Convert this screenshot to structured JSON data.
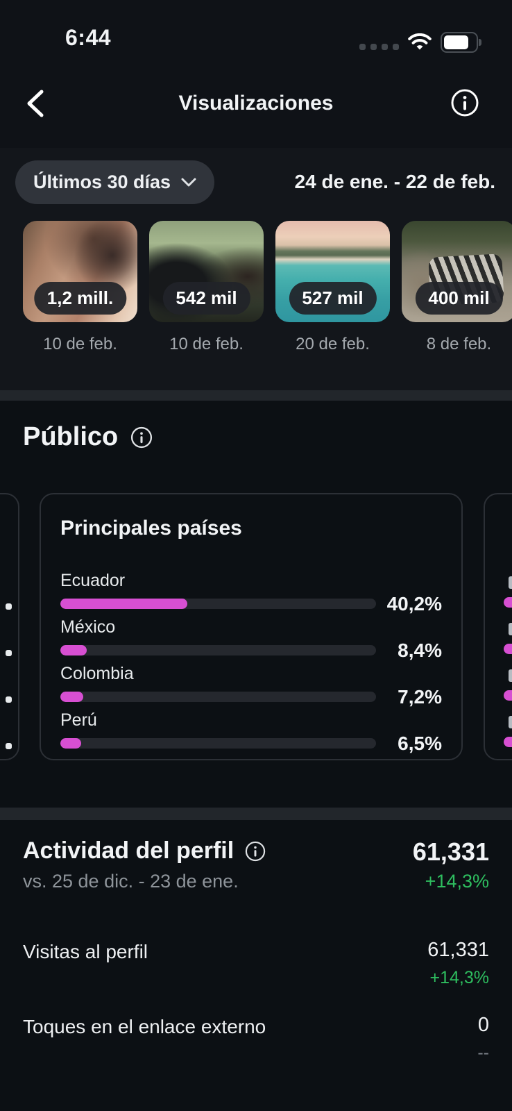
{
  "status_bar": {
    "time": "6:44"
  },
  "header": {
    "title": "Visualizaciones"
  },
  "filter": {
    "range_label": "Últimos 30 días",
    "date_range": "24 de ene. - 22 de feb."
  },
  "media_carousel": {
    "items": [
      {
        "views": "1,2 mill.",
        "date": "10 de feb.",
        "alt": "closeup-portrait-makeup"
      },
      {
        "views": "542 mil",
        "date": "10 de feb.",
        "alt": "two-people-indoors-plants"
      },
      {
        "views": "527 mil",
        "date": "20 de feb.",
        "alt": "beach-resort-turquoise-water"
      },
      {
        "views": "400 mil",
        "date": "8 de feb.",
        "alt": "two-people-outdoor-zebra-print"
      }
    ]
  },
  "audience": {
    "section_title": "Público"
  },
  "chart_data": {
    "type": "bar",
    "orientation": "horizontal",
    "title": "Principales países",
    "categories": [
      "Ecuador",
      "México",
      "Colombia",
      "Perú"
    ],
    "values": [
      40.2,
      8.4,
      7.2,
      6.5
    ],
    "value_labels": [
      "40,2%",
      "8,4%",
      "7,2%",
      "6,5%"
    ],
    "xlim": [
      0,
      100
    ],
    "bar_color": "#d74fd2",
    "track_color": "#25282e"
  },
  "profile_activity": {
    "title": "Actividad del perfil",
    "comparison": "vs. 25 de dic. - 23 de ene.",
    "total": "61,331",
    "total_change": "+14,3%",
    "rows": [
      {
        "label": "Visitas al perfil",
        "value": "61,331",
        "change": "+14,3%",
        "positive": true
      },
      {
        "label": "Toques en el enlace externo",
        "value": "0",
        "change": "--",
        "positive": false
      }
    ]
  },
  "colors": {
    "accent_pink": "#d74fd2",
    "positive_green": "#2ebd5f",
    "badge_bg": "#212429",
    "background": "#0c1014"
  }
}
